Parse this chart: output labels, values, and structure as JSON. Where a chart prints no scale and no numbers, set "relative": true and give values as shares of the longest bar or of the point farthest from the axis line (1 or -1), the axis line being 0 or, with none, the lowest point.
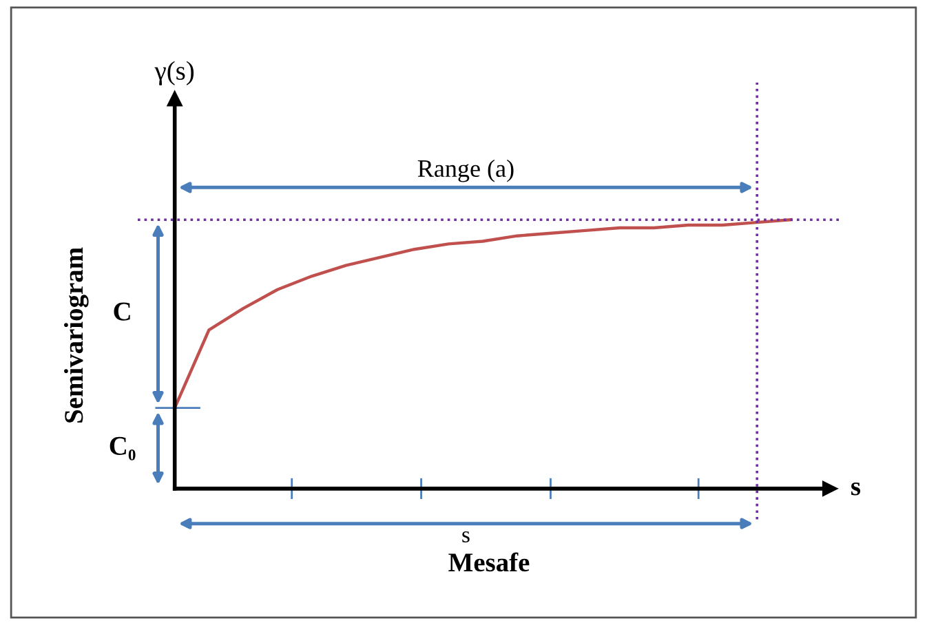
{
  "chart_data": {
    "type": "line",
    "relative": true,
    "xlabel": "Mesafe",
    "ylabel": "Semivariogram",
    "categories": [
      null,
      null,
      null,
      null,
      null,
      null,
      null,
      null,
      null,
      null,
      null,
      null,
      null,
      null,
      null,
      null,
      null,
      null,
      null
    ],
    "series": [
      {
        "color": "#c0504d",
        "values": [
          0.3,
          0.59,
          0.67,
          0.74,
          0.79,
          0.83,
          0.86,
          0.89,
          0.91,
          0.92,
          0.94,
          0.95,
          0.96,
          0.97,
          0.97,
          0.98,
          0.98,
          0.99,
          1.0
        ]
      }
    ],
    "ref_lines": [
      {
        "axis": "y",
        "value": 1.0,
        "color": "#7030a0",
        "line_style": "dotted"
      }
    ],
    "annotations": [
      "C",
      "C₀",
      "s",
      "γ(s)",
      "s",
      "Range (a)"
    ],
    "marker": "none",
    "line_style": "solid",
    "grid": false
  }
}
